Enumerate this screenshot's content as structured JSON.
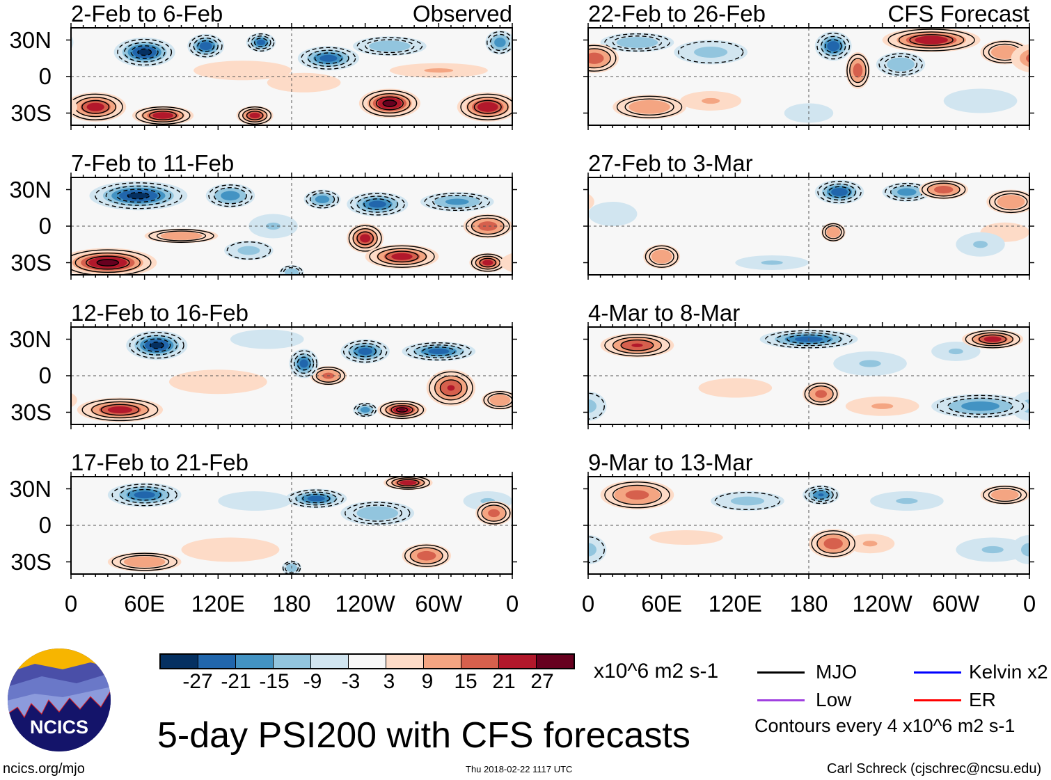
{
  "header": {
    "observed_label": "Observed",
    "forecast_label": "CFS Forecast"
  },
  "axes": {
    "lat_labels": [
      "30N",
      "0",
      "30S"
    ],
    "lon_labels": [
      "0",
      "60E",
      "120E",
      "180",
      "120W",
      "60W",
      "0"
    ]
  },
  "colorbar": {
    "colors": [
      "#053061",
      "#2166ac",
      "#4393c3",
      "#92c5de",
      "#d1e5f0",
      "#f7f7f7",
      "#fddbc7",
      "#f4a582",
      "#d6604d",
      "#b2182b",
      "#67001f"
    ],
    "labels": [
      "-27",
      "-21",
      "-15",
      "-9",
      "-3",
      "3",
      "9",
      "15",
      "21",
      "27"
    ],
    "units": "x10^6 m2 s-1"
  },
  "legend": {
    "items": [
      {
        "label": "MJO",
        "color": "#000000"
      },
      {
        "label": "Kelvin x2",
        "color": "#0000ff"
      },
      {
        "label": "Low",
        "color": "#a040e0"
      },
      {
        "label": "ER",
        "color": "#ff0000"
      }
    ],
    "contour_note": "Contours every 4 x10^6 m2 s-1"
  },
  "title": "5-day PSI200 with CFS forecasts",
  "footer": {
    "url": "ncics.org/mjo",
    "timestamp": "Thu 2018-02-22 1117 UTC",
    "author": "Carl Schreck (cjschrec@ncsu.edu)"
  },
  "logo": {
    "text": "NCICS"
  },
  "panels": [
    {
      "title": "2-Feb to 6-Feb",
      "source": "observed",
      "anomalies": [
        [
          60,
          20,
          -30,
          25,
          12
        ],
        [
          110,
          25,
          -27,
          15,
          10
        ],
        [
          155,
          28,
          -25,
          12,
          8
        ],
        [
          210,
          15,
          -25,
          25,
          10
        ],
        [
          260,
          25,
          -15,
          30,
          8
        ],
        [
          350,
          28,
          -20,
          12,
          10
        ],
        [
          140,
          5,
          6,
          40,
          8
        ],
        [
          190,
          -5,
          5,
          30,
          8
        ],
        [
          300,
          5,
          10,
          40,
          6
        ],
        [
          20,
          -25,
          25,
          25,
          12
        ],
        [
          75,
          -32,
          27,
          25,
          8
        ],
        [
          150,
          -32,
          25,
          15,
          8
        ],
        [
          260,
          -22,
          30,
          25,
          12
        ],
        [
          340,
          -25,
          27,
          25,
          12
        ]
      ]
    },
    {
      "title": "7-Feb to 11-Feb",
      "source": "observed",
      "anomalies": [
        [
          55,
          25,
          -30,
          40,
          12
        ],
        [
          130,
          25,
          -20,
          20,
          10
        ],
        [
          165,
          0,
          -10,
          20,
          10
        ],
        [
          205,
          22,
          -20,
          15,
          8
        ],
        [
          250,
          18,
          -25,
          25,
          10
        ],
        [
          315,
          20,
          -18,
          30,
          8
        ],
        [
          145,
          -20,
          -12,
          20,
          8
        ],
        [
          180,
          -38,
          -15,
          10,
          6
        ],
        [
          30,
          -30,
          30,
          40,
          12
        ],
        [
          240,
          -10,
          25,
          15,
          12
        ],
        [
          270,
          -25,
          25,
          30,
          10
        ],
        [
          90,
          -8,
          15,
          30,
          6
        ],
        [
          340,
          0,
          20,
          20,
          10
        ],
        [
          340,
          -30,
          25,
          15,
          8
        ]
      ]
    },
    {
      "title": "12-Feb to 16-Feb",
      "source": "observed",
      "anomalies": [
        [
          70,
          25,
          -30,
          25,
          12
        ],
        [
          190,
          10,
          -25,
          12,
          12
        ],
        [
          240,
          20,
          -25,
          20,
          10
        ],
        [
          300,
          20,
          -25,
          30,
          8
        ],
        [
          240,
          -28,
          -20,
          10,
          6
        ],
        [
          160,
          30,
          -8,
          30,
          8
        ],
        [
          120,
          -5,
          6,
          40,
          10
        ],
        [
          40,
          -28,
          25,
          35,
          10
        ],
        [
          210,
          0,
          18,
          15,
          8
        ],
        [
          270,
          -28,
          28,
          20,
          8
        ],
        [
          310,
          -10,
          22,
          20,
          15
        ],
        [
          350,
          -20,
          15,
          15,
          8
        ]
      ]
    },
    {
      "title": "17-Feb to 21-Feb",
      "source": "observed",
      "anomalies": [
        [
          60,
          25,
          -25,
          30,
          10
        ],
        [
          200,
          22,
          -25,
          25,
          8
        ],
        [
          250,
          10,
          -15,
          30,
          10
        ],
        [
          150,
          20,
          -8,
          30,
          8
        ],
        [
          340,
          20,
          -10,
          20,
          8
        ],
        [
          180,
          -35,
          -15,
          8,
          6
        ],
        [
          130,
          -20,
          6,
          40,
          10
        ],
        [
          275,
          35,
          27,
          20,
          6
        ],
        [
          345,
          10,
          18,
          15,
          10
        ],
        [
          60,
          -30,
          15,
          30,
          8
        ],
        [
          290,
          -25,
          20,
          20,
          10
        ]
      ]
    },
    {
      "title": "22-Feb to 26-Feb",
      "source": "forecast",
      "anomalies": [
        [
          40,
          28,
          -15,
          30,
          8
        ],
        [
          100,
          20,
          -12,
          30,
          10
        ],
        [
          200,
          25,
          -27,
          15,
          12
        ],
        [
          255,
          10,
          -15,
          20,
          10
        ],
        [
          320,
          -20,
          -8,
          30,
          10
        ],
        [
          180,
          -30,
          -8,
          20,
          8
        ],
        [
          5,
          15,
          20,
          20,
          12
        ],
        [
          220,
          5,
          20,
          10,
          15
        ],
        [
          280,
          30,
          27,
          40,
          10
        ],
        [
          340,
          20,
          15,
          20,
          10
        ],
        [
          50,
          -25,
          15,
          30,
          10
        ],
        [
          100,
          -20,
          10,
          25,
          8
        ]
      ]
    },
    {
      "title": "27-Feb to 3-Mar",
      "source": "forecast",
      "anomalies": [
        [
          205,
          28,
          -27,
          20,
          10
        ],
        [
          260,
          28,
          -20,
          20,
          8
        ],
        [
          20,
          10,
          -8,
          20,
          10
        ],
        [
          320,
          -15,
          -10,
          20,
          10
        ],
        [
          150,
          -30,
          -10,
          30,
          6
        ],
        [
          290,
          30,
          20,
          20,
          8
        ],
        [
          345,
          20,
          15,
          20,
          10
        ],
        [
          60,
          -25,
          15,
          15,
          10
        ],
        [
          200,
          -5,
          15,
          10,
          8
        ],
        [
          340,
          -5,
          8,
          20,
          8
        ]
      ]
    },
    {
      "title": "4-Mar to 8-Mar",
      "source": "forecast",
      "anomalies": [
        [
          180,
          30,
          -25,
          40,
          8
        ],
        [
          230,
          10,
          -10,
          30,
          10
        ],
        [
          0,
          -25,
          -12,
          15,
          12
        ],
        [
          320,
          -25,
          -20,
          40,
          10
        ],
        [
          300,
          20,
          -10,
          20,
          8
        ],
        [
          120,
          -10,
          6,
          30,
          8
        ],
        [
          240,
          -25,
          10,
          30,
          8
        ],
        [
          40,
          25,
          22,
          30,
          10
        ],
        [
          330,
          30,
          25,
          25,
          8
        ],
        [
          190,
          -15,
          18,
          15,
          10
        ]
      ]
    },
    {
      "title": "9-Mar to 13-Mar",
      "source": "forecast",
      "anomalies": [
        [
          130,
          20,
          -12,
          30,
          8
        ],
        [
          190,
          25,
          -22,
          15,
          8
        ],
        [
          260,
          20,
          -10,
          30,
          8
        ],
        [
          0,
          -20,
          -12,
          15,
          12
        ],
        [
          330,
          -20,
          -10,
          30,
          10
        ],
        [
          80,
          -10,
          8,
          30,
          6
        ],
        [
          40,
          25,
          18,
          30,
          12
        ],
        [
          200,
          -15,
          20,
          20,
          12
        ],
        [
          230,
          -15,
          10,
          20,
          8
        ],
        [
          340,
          25,
          15,
          20,
          8
        ]
      ]
    }
  ]
}
